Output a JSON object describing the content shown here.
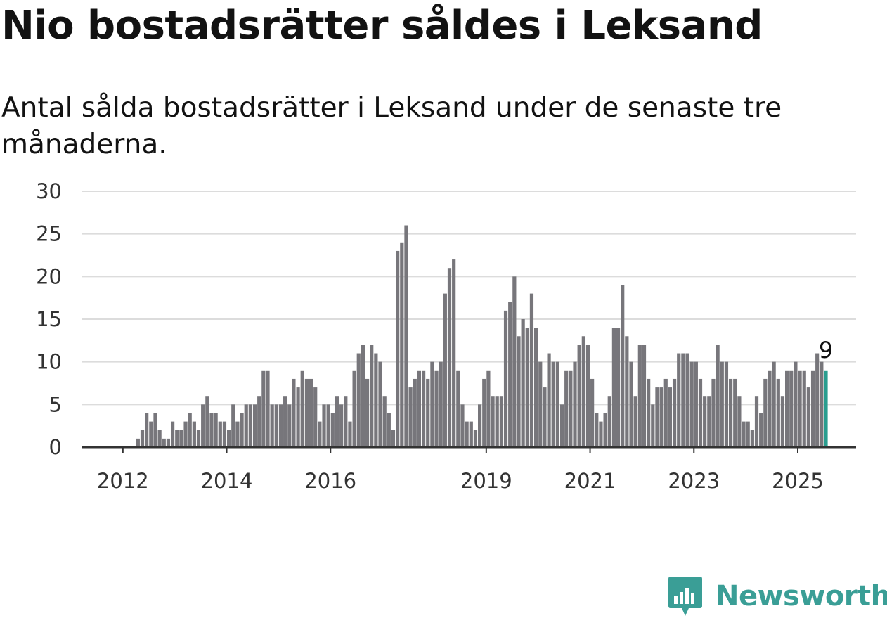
{
  "header": {
    "title": "Nio bostadsrätter såldes i Leksand",
    "subtitle": "Antal sålda bostadsrätter i Leksand under de senaste tre månaderna."
  },
  "brand": {
    "name": "Newsworthy",
    "color": "#3a9e96"
  },
  "chart_data": {
    "type": "bar",
    "title": "Nio bostadsrätter såldes i Leksand",
    "subtitle": "Antal sålda bostadsrätter i Leksand under de senaste tre månaderna.",
    "ylim": [
      0,
      30
    ],
    "yticks": [
      "0",
      "5",
      "10",
      "15",
      "20",
      "25",
      "30"
    ],
    "xtick_labels": [
      {
        "label": "2012",
        "year": 2012
      },
      {
        "label": "2014",
        "year": 2014
      },
      {
        "label": "2016",
        "year": 2016
      },
      {
        "label": "2019",
        "year": 2019
      },
      {
        "label": "2021",
        "year": 2021
      },
      {
        "label": "2023",
        "year": 2023
      },
      {
        "label": "2025",
        "year": 2025
      }
    ],
    "grid": true,
    "first_month": "2011-06",
    "bar_color": "#77767b",
    "highlight_color": "#2a9d8f",
    "highlight_label": "9",
    "values": [
      0,
      0,
      0,
      0,
      0,
      0,
      0,
      0,
      0,
      0,
      1,
      2,
      4,
      3,
      4,
      2,
      1,
      1,
      3,
      2,
      2,
      3,
      4,
      3,
      2,
      5,
      6,
      4,
      4,
      3,
      3,
      2,
      5,
      3,
      4,
      5,
      5,
      5,
      6,
      9,
      9,
      5,
      5,
      5,
      6,
      5,
      8,
      7,
      9,
      8,
      8,
      7,
      3,
      5,
      5,
      4,
      6,
      5,
      6,
      3,
      9,
      11,
      12,
      8,
      12,
      11,
      10,
      6,
      4,
      2,
      23,
      24,
      26,
      7,
      8,
      9,
      9,
      8,
      10,
      9,
      10,
      18,
      21,
      22,
      9,
      5,
      3,
      3,
      2,
      5,
      8,
      9,
      6,
      6,
      6,
      16,
      17,
      20,
      13,
      15,
      14,
      18,
      14,
      10,
      7,
      11,
      10,
      10,
      5,
      9,
      9,
      10,
      12,
      13,
      12,
      8,
      4,
      3,
      4,
      6,
      14,
      14,
      19,
      13,
      10,
      6,
      12,
      12,
      8,
      5,
      7,
      7,
      8,
      7,
      8,
      11,
      11,
      11,
      10,
      10,
      8,
      6,
      6,
      8,
      12,
      10,
      10,
      8,
      8,
      6,
      3,
      3,
      2,
      6,
      4,
      8,
      9,
      10,
      8,
      6,
      9,
      9,
      10,
      9,
      9,
      7,
      9,
      11,
      10,
      9
    ]
  }
}
